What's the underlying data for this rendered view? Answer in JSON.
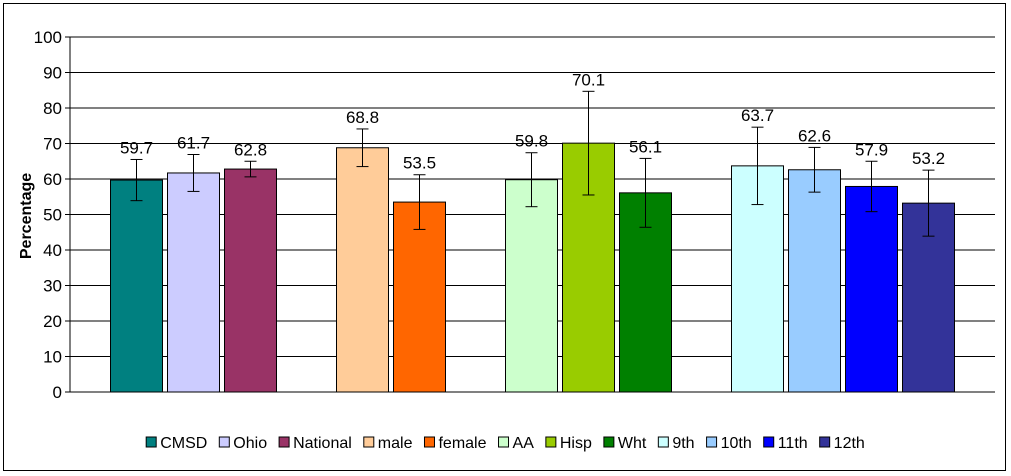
{
  "chart_data": {
    "type": "bar",
    "ylabel": "Percentage",
    "xlabel": "",
    "title": "",
    "ylim": [
      0,
      100
    ],
    "yticks": [
      0,
      10,
      20,
      30,
      40,
      50,
      60,
      70,
      80,
      90,
      100
    ],
    "grid": true,
    "legend_position": "bottom",
    "groups": [
      {
        "bars": [
          {
            "name": "CMSD",
            "value": 59.7,
            "err_low": 53.9,
            "err_high": 65.5,
            "color": "#008080"
          },
          {
            "name": "Ohio",
            "value": 61.7,
            "err_low": 56.5,
            "err_high": 66.9,
            "color": "#CCCCFF"
          },
          {
            "name": "National",
            "value": 62.8,
            "err_low": 60.6,
            "err_high": 65.0,
            "color": "#993366"
          }
        ]
      },
      {
        "bars": [
          {
            "name": "male",
            "value": 68.8,
            "err_low": 63.5,
            "err_high": 74.1,
            "color": "#FFCC99"
          },
          {
            "name": "female",
            "value": 53.5,
            "err_low": 45.8,
            "err_high": 61.2,
            "color": "#FF6600"
          }
        ]
      },
      {
        "bars": [
          {
            "name": "AA",
            "value": 59.8,
            "err_low": 52.2,
            "err_high": 67.4,
            "color": "#CCFFCC"
          },
          {
            "name": "Hisp",
            "value": 70.1,
            "err_low": 55.5,
            "err_high": 84.7,
            "color": "#99CC00"
          },
          {
            "name": "Wht",
            "value": 56.1,
            "err_low": 46.4,
            "err_high": 65.8,
            "color": "#008000"
          }
        ]
      },
      {
        "bars": [
          {
            "name": "9th",
            "value": 63.7,
            "err_low": 52.8,
            "err_high": 74.6,
            "color": "#CCFFFF"
          },
          {
            "name": "10th",
            "value": 62.6,
            "err_low": 56.3,
            "err_high": 68.9,
            "color": "#99CCFF"
          },
          {
            "name": "11th",
            "value": 57.9,
            "err_low": 50.8,
            "err_high": 65.0,
            "color": "#0000FF"
          },
          {
            "name": "12th",
            "value": 53.2,
            "err_low": 43.9,
            "err_high": 62.5,
            "color": "#333399"
          }
        ]
      }
    ]
  }
}
